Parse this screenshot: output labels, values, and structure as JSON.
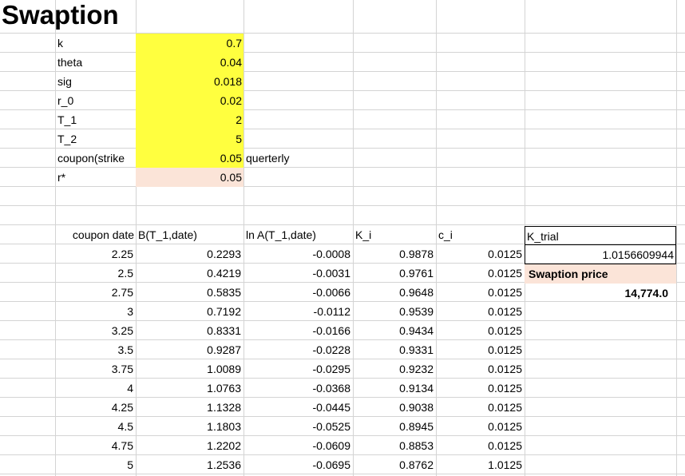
{
  "sheet": {
    "title": "Swaption",
    "params": [
      {
        "label": "k",
        "value": "0.7",
        "fill": "yellow"
      },
      {
        "label": "theta",
        "value": "0.04",
        "fill": "yellow"
      },
      {
        "label": "sig",
        "value": "0.018",
        "fill": "yellow"
      },
      {
        "label": "r_0",
        "value": "0.02",
        "fill": "yellow"
      },
      {
        "label": "T_1",
        "value": "2",
        "fill": "yellow"
      },
      {
        "label": "T_2",
        "value": "5",
        "fill": "yellow"
      },
      {
        "label": "coupon(strike",
        "value": "0.05",
        "fill": "yellow",
        "note": "querterly"
      },
      {
        "label": "r*",
        "value": "0.05",
        "fill": "peach"
      }
    ],
    "table": {
      "headers": [
        "coupon date",
        "B(T_1,date)",
        "ln A(T_1,date)",
        "K_i",
        "c_i"
      ],
      "rows": [
        [
          "2.25",
          "0.2293",
          "-0.0008",
          "0.9878",
          "0.0125"
        ],
        [
          "2.5",
          "0.4219",
          "-0.0031",
          "0.9761",
          "0.0125"
        ],
        [
          "2.75",
          "0.5835",
          "-0.0066",
          "0.9648",
          "0.0125"
        ],
        [
          "3",
          "0.7192",
          "-0.0112",
          "0.9539",
          "0.0125"
        ],
        [
          "3.25",
          "0.8331",
          "-0.0166",
          "0.9434",
          "0.0125"
        ],
        [
          "3.5",
          "0.9287",
          "-0.0228",
          "0.9331",
          "0.0125"
        ],
        [
          "3.75",
          "1.0089",
          "-0.0295",
          "0.9232",
          "0.0125"
        ],
        [
          "4",
          "1.0763",
          "-0.0368",
          "0.9134",
          "0.0125"
        ],
        [
          "4.25",
          "1.1328",
          "-0.0445",
          "0.9038",
          "0.0125"
        ],
        [
          "4.5",
          "1.1803",
          "-0.0525",
          "0.8945",
          "0.0125"
        ],
        [
          "4.75",
          "1.2202",
          "-0.0609",
          "0.8853",
          "0.0125"
        ],
        [
          "5",
          "1.2536",
          "-0.0695",
          "0.8762",
          "1.0125"
        ]
      ]
    },
    "k_trial": {
      "label": "K_trial",
      "value": "1.0156609944"
    },
    "swaption_price": {
      "label": "Swaption price",
      "value": "14,774.0"
    }
  },
  "colors": {
    "input_fill": "#ffff3f",
    "highlight_fill": "#fbe4d8",
    "gridline": "#d4d4d4"
  }
}
